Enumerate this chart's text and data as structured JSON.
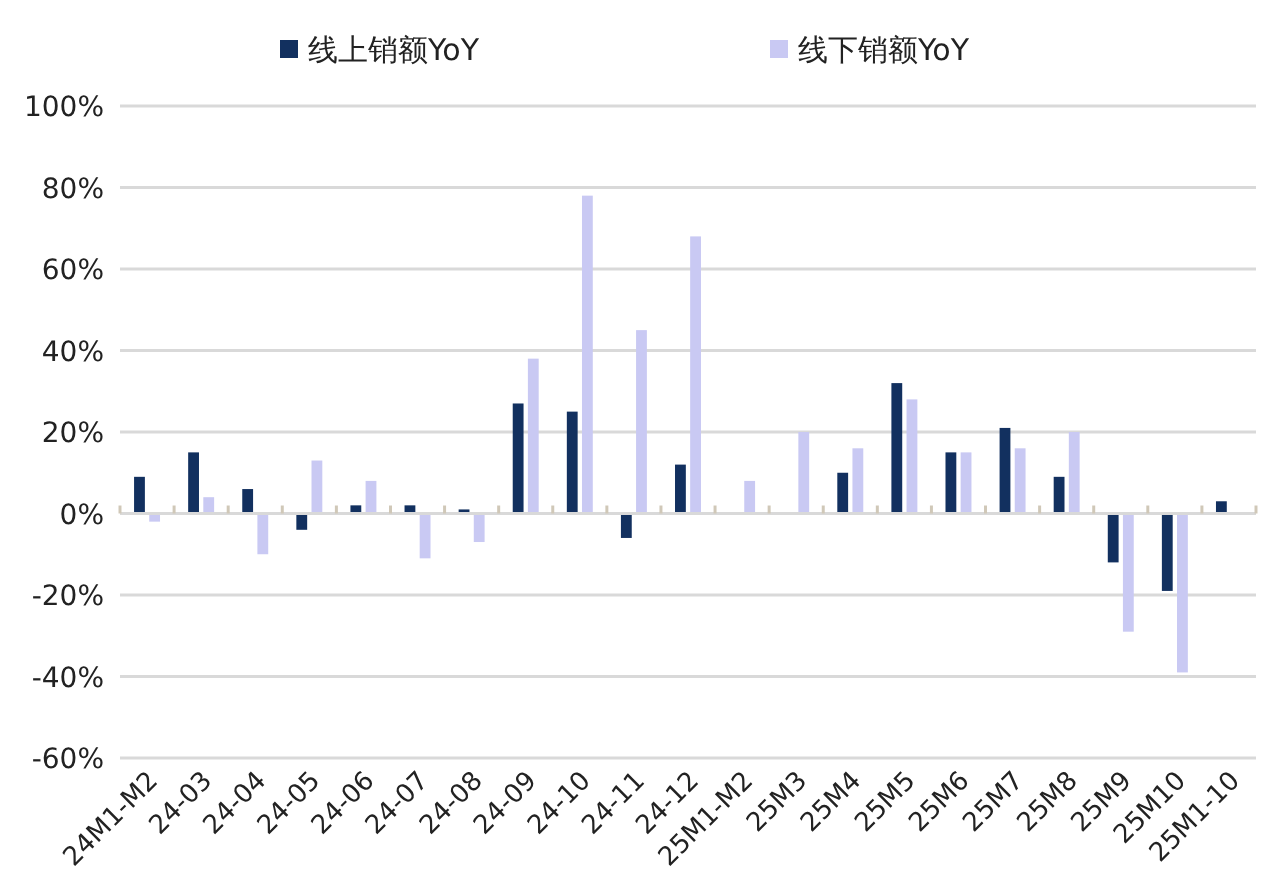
{
  "chart_data": {
    "type": "bar",
    "categories": [
      "24M1-M2",
      "24-03",
      "24-04",
      "24-05",
      "24-06",
      "24-07",
      "24-08",
      "24-09",
      "24-10",
      "24-11",
      "24-12",
      "25M1-M2",
      "25M3",
      "25M4",
      "25M5",
      "25M6",
      "25M7",
      "25M8",
      "25M9",
      "25M10",
      "25M1-10"
    ],
    "series": [
      {
        "name": "线上销额YoY",
        "color": "#12305f",
        "values": [
          9,
          15,
          6,
          -4,
          2,
          2,
          1,
          27,
          25,
          -6,
          12,
          null,
          null,
          10,
          32,
          15,
          21,
          9,
          -12,
          -19,
          3
        ]
      },
      {
        "name": "线下销额YoY",
        "color": "#c9c9f3",
        "values": [
          -2,
          4,
          -10,
          13,
          8,
          -11,
          -7,
          38,
          78,
          45,
          68,
          8,
          20,
          16,
          28,
          15,
          16,
          20,
          -29,
          -39,
          null
        ]
      }
    ],
    "ylim": [
      -60,
      100
    ],
    "yticks": [
      {
        "value": -60,
        "label": "-60%"
      },
      {
        "value": -40,
        "label": "-40%"
      },
      {
        "value": -20,
        "label": "-20%"
      },
      {
        "value": 0,
        "label": "0%"
      },
      {
        "value": 20,
        "label": "20%"
      },
      {
        "value": 40,
        "label": "40%"
      },
      {
        "value": 60,
        "label": "60%"
      },
      {
        "value": 80,
        "label": "80%"
      },
      {
        "value": 100,
        "label": "100%"
      }
    ],
    "grid": "y",
    "legend": "top"
  }
}
